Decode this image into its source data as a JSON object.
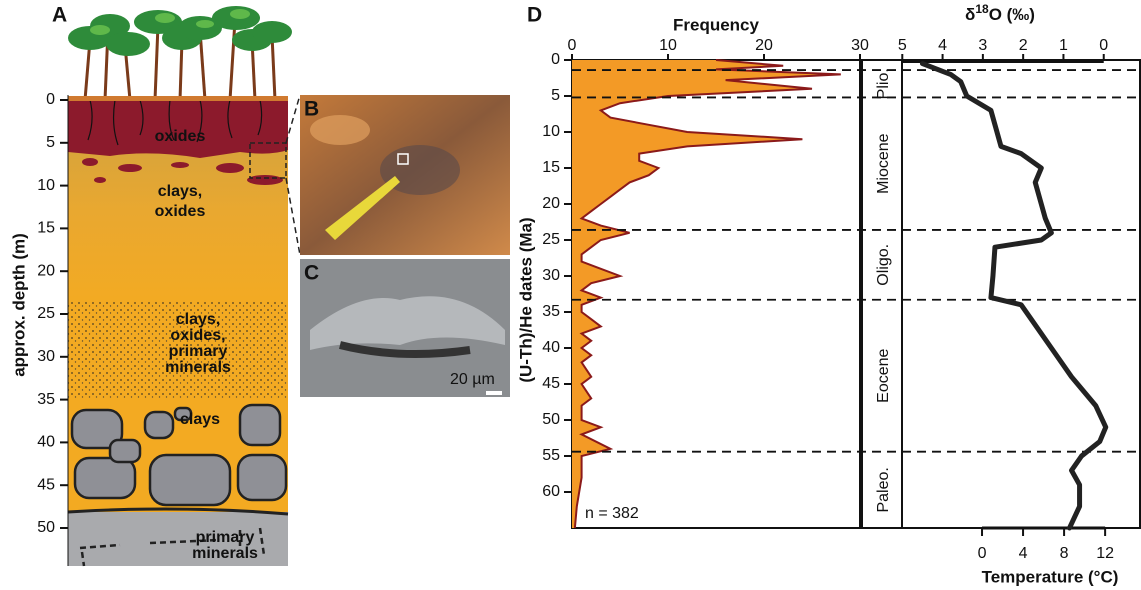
{
  "panel_a": {
    "label": "A",
    "y_label": "approx. depth (m)",
    "ylim": [
      0,
      50
    ],
    "yticks": [
      0,
      5,
      10,
      15,
      20,
      25,
      30,
      35,
      40,
      45,
      50
    ],
    "layer_labels": [
      [
        "oxides"
      ],
      [
        "clays,",
        "oxides"
      ],
      [
        "clays,",
        "oxides,",
        "primary",
        "minerals"
      ],
      [
        "clays"
      ],
      [
        "primary",
        "minerals"
      ]
    ]
  },
  "panel_b": {
    "label": "B"
  },
  "panel_c": {
    "label": "C",
    "scale_label": "20 µm"
  },
  "chart_data": [
    {
      "type": "area",
      "panel_label": "D",
      "x_label": "Frequency",
      "y_label": "(U-Th)/He dates (Ma)",
      "annotation": "n = 382",
      "xlim": [
        0,
        30
      ],
      "xticks": [
        0,
        10,
        20,
        30
      ],
      "ylim": [
        0,
        65
      ],
      "yticks": [
        0,
        5,
        10,
        15,
        20,
        25,
        30,
        35,
        40,
        45,
        50,
        55,
        60
      ],
      "fill_color": "#f39a26",
      "line_color": "#8b1a1a",
      "ages": [
        0,
        0.8,
        1.3,
        2,
        2.8,
        4,
        5,
        6,
        7,
        8,
        9,
        10,
        11,
        12,
        13,
        14,
        15,
        16,
        17,
        18,
        19,
        20,
        21,
        22,
        23,
        24,
        25,
        26,
        27,
        28,
        29,
        30,
        31,
        32,
        33,
        34,
        35,
        36,
        37,
        38,
        39,
        40,
        41,
        42,
        44,
        45,
        47,
        48,
        50,
        51,
        52,
        54,
        55,
        58,
        62,
        65
      ],
      "values": [
        15,
        22,
        15,
        28,
        16,
        25,
        10,
        5,
        3,
        4,
        8,
        12,
        24,
        12,
        7,
        7,
        9,
        8,
        6,
        5,
        4,
        3,
        2,
        1,
        3,
        6,
        3,
        2,
        1,
        1,
        3,
        5,
        2,
        1,
        3,
        1,
        1,
        2,
        3,
        1,
        2,
        1,
        2,
        1,
        2,
        1,
        2,
        1,
        1,
        3,
        1,
        4,
        1,
        1,
        0.5,
        0.3
      ]
    },
    {
      "type": "line",
      "x_label": [
        "δ",
        "18",
        "O (‰)"
      ],
      "x2_label": "Temperature (°C)",
      "xlim": [
        6,
        -0.9
      ],
      "xticks": [
        5,
        4,
        3,
        2,
        1,
        0
      ],
      "x2lim": [
        -11.7,
        15.4
      ],
      "x2ticks": [
        0,
        4,
        8,
        12
      ],
      "ylim": [
        0,
        65
      ],
      "boundaries": [
        1.4,
        5.2,
        23.6,
        33.3,
        54.4
      ],
      "epochs": [
        "Plio.",
        "Miocene",
        "Oligo.",
        "Eocene",
        "Paleo."
      ],
      "color": "#222222",
      "ages": [
        0.5,
        2,
        3,
        5,
        7,
        9,
        12,
        13,
        15,
        17,
        20,
        22,
        24,
        25,
        26,
        30,
        33,
        34,
        36,
        40,
        44,
        48,
        51,
        53,
        55,
        57,
        59,
        62,
        65
      ],
      "values": [
        4.5,
        3.8,
        3.55,
        3.4,
        2.8,
        2.7,
        2.55,
        2.05,
        1.55,
        1.7,
        1.55,
        1.45,
        1.3,
        1.55,
        2.7,
        2.75,
        2.8,
        2.05,
        1.8,
        1.3,
        0.8,
        0.2,
        -0.05,
        0.1,
        0.55,
        0.8,
        0.6,
        0.6,
        0.85
      ]
    }
  ]
}
